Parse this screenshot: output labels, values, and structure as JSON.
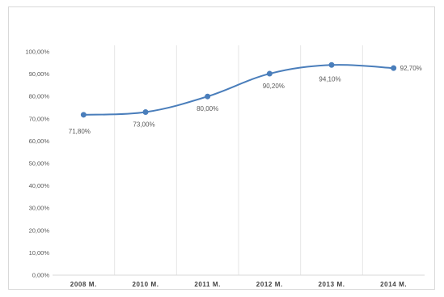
{
  "chart_data": {
    "type": "line",
    "title": "",
    "xlabel": "",
    "ylabel": "",
    "categories": [
      "2008 M.",
      "2010 M.",
      "2011 M.",
      "2012 M.",
      "2013 M.",
      "2014 M."
    ],
    "series": [
      {
        "values": [
          71.8,
          73.0,
          80.0,
          90.2,
          94.1,
          92.7
        ],
        "labels": [
          "71,80%",
          "73,00%",
          "80,00%",
          "90,20%",
          "94,10%",
          "92,70%"
        ],
        "color": "#4a7ebb"
      }
    ],
    "yticks": [
      "0,00%",
      "10,00%",
      "20,00%",
      "30,00%",
      "40,00%",
      "50,00%",
      "60,00%",
      "70,00%",
      "80,00%",
      "90,00%",
      "100,00%"
    ],
    "ylim": [
      0,
      100
    ],
    "grid": "vertical",
    "legend": "none"
  }
}
